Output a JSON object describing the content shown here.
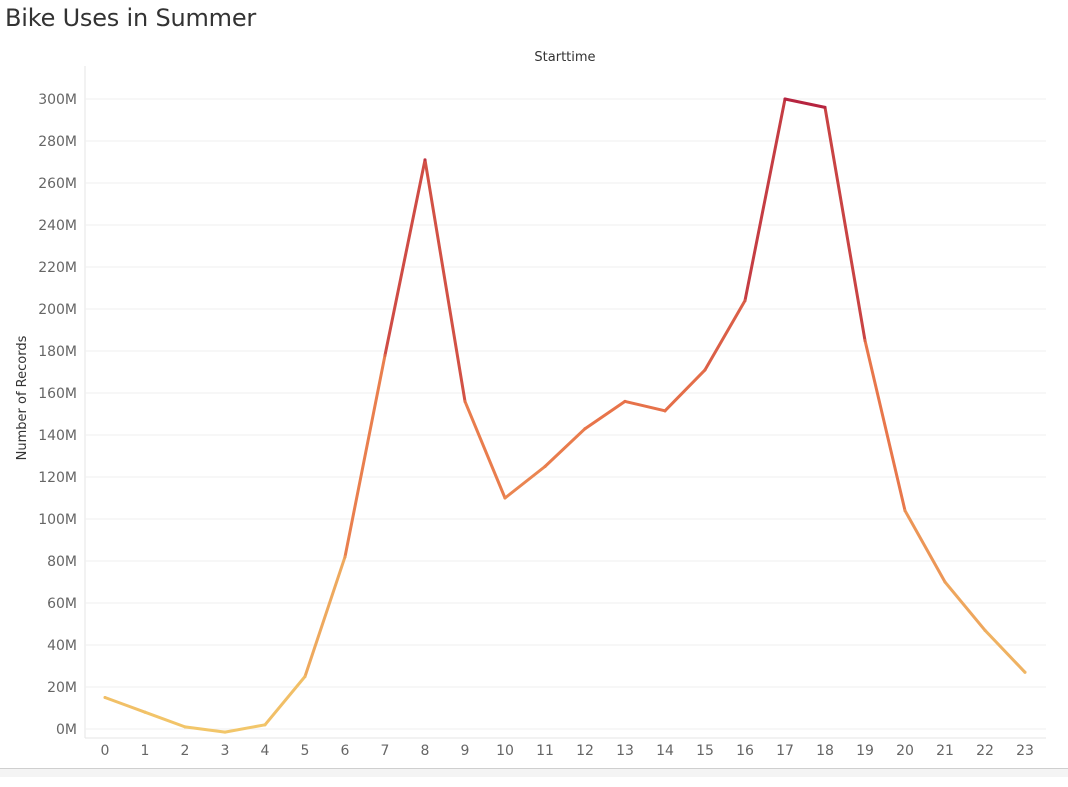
{
  "page": {
    "title": "Bike Uses in Summer"
  },
  "chart_data": {
    "type": "line",
    "title": "Bike Uses in Summer",
    "column_header": "Starttime",
    "xlabel": "",
    "ylabel": "Number of Records",
    "categories": [
      "0",
      "1",
      "2",
      "3",
      "4",
      "5",
      "6",
      "7",
      "8",
      "9",
      "10",
      "11",
      "12",
      "13",
      "14",
      "15",
      "16",
      "17",
      "18",
      "19",
      "20",
      "21",
      "22",
      "23"
    ],
    "values": [
      15000000,
      8000000,
      1000000,
      -1500000,
      2000000,
      25000000,
      82000000,
      178000000,
      271000000,
      156000000,
      110000000,
      125000000,
      143000000,
      156000000,
      151500000,
      171000000,
      204000000,
      300000000,
      296000000,
      185000000,
      104000000,
      70000000,
      47000000,
      27000000
    ],
    "ylim": [
      -5000000,
      310000000
    ],
    "y_ticks": [
      0,
      20000000,
      40000000,
      60000000,
      80000000,
      100000000,
      120000000,
      140000000,
      160000000,
      180000000,
      200000000,
      220000000,
      240000000,
      260000000,
      280000000,
      300000000
    ],
    "y_tick_labels": [
      "0M",
      "20M",
      "40M",
      "60M",
      "80M",
      "100M",
      "120M",
      "140M",
      "160M",
      "180M",
      "200M",
      "220M",
      "240M",
      "260M",
      "280M",
      "300M"
    ],
    "grid": true,
    "color_scale": {
      "low": "#f2c76a",
      "mid": "#e8744a",
      "high": "#b5233f"
    }
  }
}
